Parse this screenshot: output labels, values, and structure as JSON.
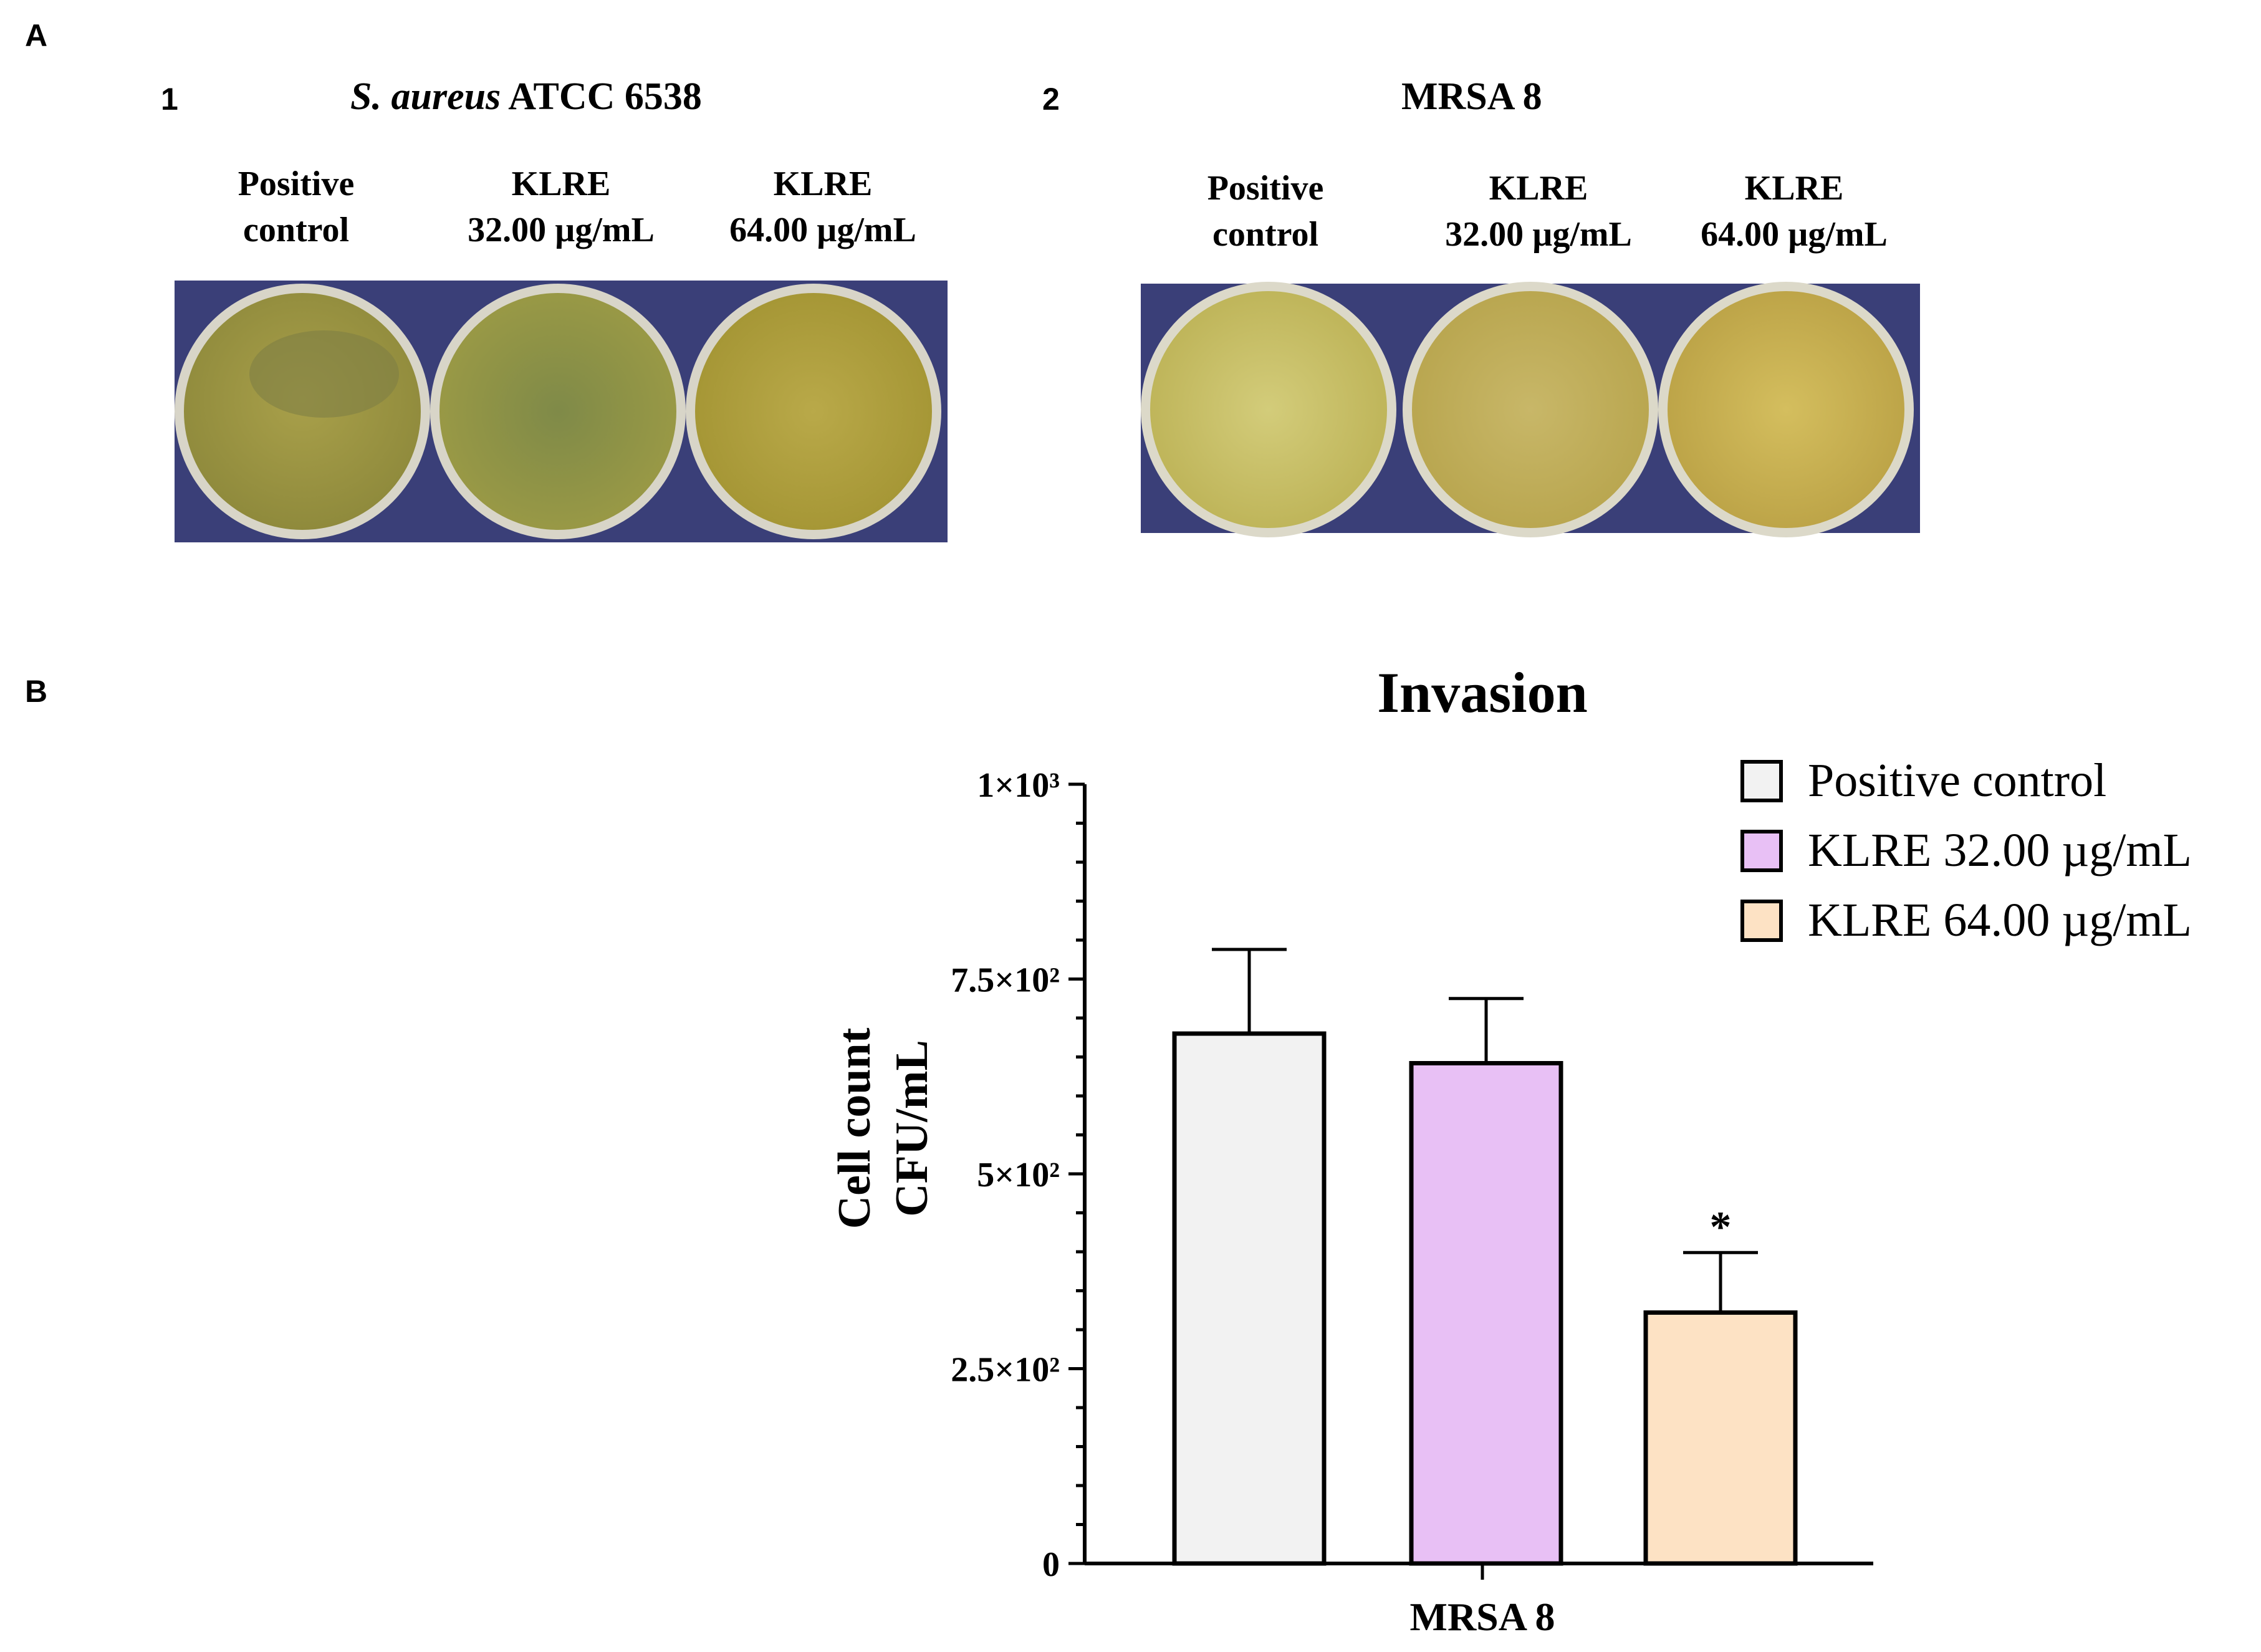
{
  "panel_a": {
    "letter": "A",
    "plate_1": {
      "number": "1",
      "title_italic": "S. aureus",
      "title_rest": " ATCC 6538",
      "labels": [
        {
          "line1": "Positive",
          "line2": "control"
        },
        {
          "line1": "KLRE",
          "line2": "32.00 µg/mL"
        },
        {
          "line1": "KLRE",
          "line2": "64.00 µg/mL"
        }
      ]
    },
    "plate_2": {
      "number": "2",
      "title": "MRSA 8",
      "labels": [
        {
          "line1": "Positive",
          "line2": "control"
        },
        {
          "line1": "KLRE",
          "line2": "32.00 µg/mL"
        },
        {
          "line1": "KLRE",
          "line2": "64.00 µg/mL"
        }
      ]
    }
  },
  "panel_b": {
    "letter": "B"
  },
  "colors": {
    "positive_control": "#f2f2f2",
    "klre_32": "#e8c0f5",
    "klre_64": "#fde2c4",
    "plate_background": "#3a3f78",
    "agar": "#b5aa4a"
  },
  "chart_data": {
    "type": "bar",
    "title": "Invasion",
    "xlabel": "MRSA 8",
    "ylabel_line1": "Cell count",
    "ylabel_line2": "CFU/mL",
    "ylim": [
      0,
      1000
    ],
    "y_ticks": [
      {
        "value": 0,
        "label": "0"
      },
      {
        "value": 250,
        "label": "2.5×10²"
      },
      {
        "value": 500,
        "label": "5×10²"
      },
      {
        "value": 750,
        "label": "7.5×10²"
      },
      {
        "value": 1000,
        "label": "1×10³"
      }
    ],
    "series": [
      {
        "name": "Positive control",
        "value": 680,
        "error": 108,
        "color": "#f2f2f2",
        "annotation": ""
      },
      {
        "name": "KLRE 32.00 µg/mL",
        "value": 642,
        "error": 83,
        "color": "#e8c0f5",
        "annotation": ""
      },
      {
        "name": "KLRE 64.00 µg/mL",
        "value": 322,
        "error": 77,
        "color": "#fde2c4",
        "annotation": "*"
      }
    ],
    "legend_position": "top-right"
  }
}
